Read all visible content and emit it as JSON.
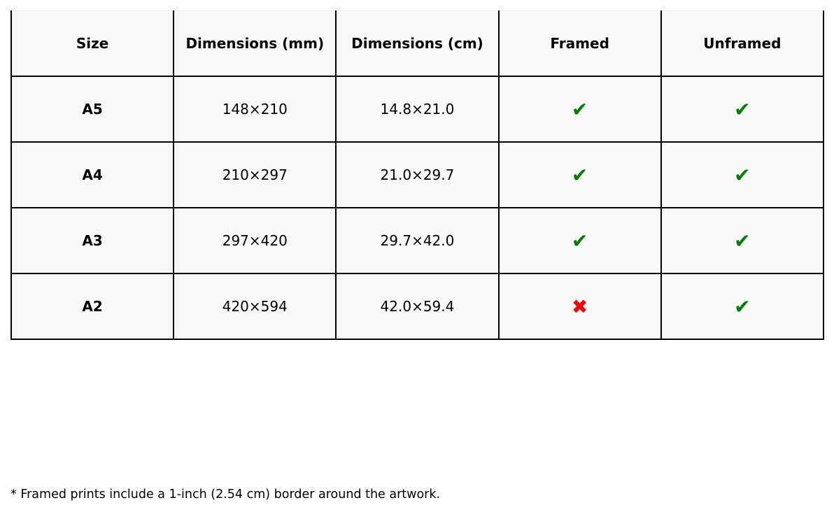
{
  "table": {
    "headers": [
      "Size",
      "Dimensions (mm)",
      "Dimensions (cm)",
      "Framed",
      "Unframed"
    ],
    "rows": [
      {
        "size": "A5",
        "mm": "148×210",
        "cm": "14.8×21.0",
        "framed": "✔",
        "unframed": "✔"
      },
      {
        "size": "A4",
        "mm": "210×297",
        "cm": "21.0×29.7",
        "framed": "✔",
        "unframed": "✔"
      },
      {
        "size": "A3",
        "mm": "297×420",
        "cm": "29.7×42.0",
        "framed": "✔",
        "unframed": "✔"
      },
      {
        "size": "A2",
        "mm": "420×594",
        "cm": "42.0×59.4",
        "framed": "✖",
        "unframed": "✔"
      }
    ]
  },
  "colors": {
    "available": "#008000",
    "unavailable": "#ff0000"
  },
  "footnote": "* Framed prints include a 1-inch (2.54 cm) border around the artwork."
}
